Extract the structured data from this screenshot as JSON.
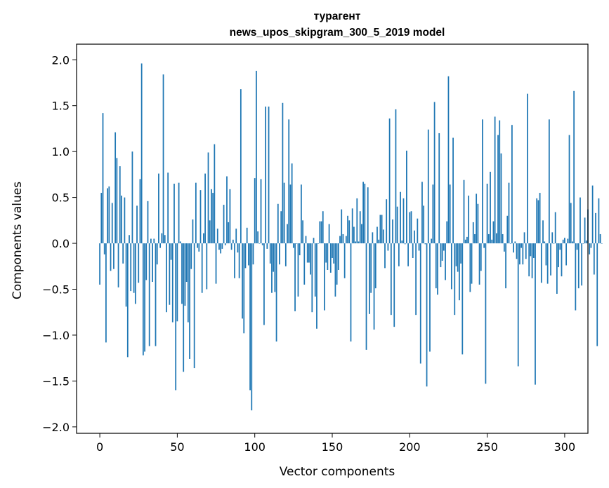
{
  "chart_data": {
    "type": "bar",
    "title": "туpагент",
    "subtitle": "news_upos_skipgram_300_5_2019 model",
    "xlabel": "Vector components",
    "ylabel": "Components values",
    "xlim": [
      -15,
      315
    ],
    "ylim": [
      -2.07,
      2.17
    ],
    "xticks": [
      0,
      50,
      100,
      150,
      200,
      250,
      300
    ],
    "yticks": [
      -2.0,
      -1.5,
      -1.0,
      -0.5,
      0.0,
      0.5,
      1.0,
      1.5,
      2.0
    ],
    "xtick_labels": [
      "0",
      "50",
      "100",
      "150",
      "200",
      "250",
      "300"
    ],
    "ytick_labels": [
      "−2.0",
      "−1.5",
      "−1.0",
      "−0.5",
      "0.0",
      "0.5",
      "1.0",
      "1.5",
      "2.0"
    ],
    "grid": false,
    "bar_color": "#1f77b4",
    "values": [
      -0.45,
      0.55,
      1.42,
      -0.12,
      -1.08,
      0.6,
      0.62,
      -0.3,
      0.44,
      -0.28,
      1.21,
      0.93,
      -0.48,
      0.84,
      0.52,
      -0.22,
      0.5,
      -0.69,
      -1.24,
      0.09,
      -0.52,
      1.0,
      -0.54,
      -0.66,
      0.41,
      -0.43,
      0.7,
      1.96,
      -1.22,
      -1.18,
      -0.4,
      0.46,
      -1.12,
      0.05,
      -0.42,
      0.05,
      -1.12,
      -0.23,
      0.76,
      -0.05,
      0.11,
      1.84,
      0.09,
      -0.75,
      0.77,
      -0.67,
      -0.18,
      -0.86,
      0.65,
      -1.6,
      -0.85,
      0.66,
      0.02,
      -0.66,
      -1.4,
      -0.68,
      -0.42,
      -0.86,
      -1.26,
      -0.28,
      0.26,
      -1.36,
      0.66,
      -0.05,
      -0.09,
      0.58,
      -0.54,
      0.11,
      0.76,
      -0.5,
      0.99,
      0.25,
      0.59,
      0.55,
      1.08,
      -0.44,
      0.16,
      -0.07,
      -0.11,
      -0.06,
      0.42,
      -0.02,
      0.73,
      0.23,
      0.59,
      -0.07,
      0.04,
      -0.38,
      0.16,
      -0.1,
      -0.38,
      1.68,
      -0.82,
      -0.98,
      -0.27,
      0.17,
      -0.24,
      -1.6,
      -1.82,
      -0.23,
      0.71,
      1.88,
      0.13,
      0.0,
      0.7,
      -0.02,
      -0.89,
      1.49,
      -0.06,
      1.49,
      -0.22,
      -0.54,
      -0.31,
      -0.53,
      -1.07,
      0.43,
      -0.23,
      0.35,
      1.53,
      0.66,
      -0.25,
      0.21,
      1.35,
      0.64,
      0.87,
      -0.05,
      -0.74,
      0.0,
      -0.58,
      -0.13,
      0.64,
      0.25,
      -0.45,
      0.08,
      -0.21,
      -0.21,
      -0.34,
      -0.75,
      0.06,
      -0.58,
      -0.93,
      0.0,
      0.24,
      0.24,
      0.35,
      -0.73,
      -0.21,
      -0.29,
      0.21,
      -0.32,
      -0.16,
      -0.22,
      -0.58,
      -0.45,
      -0.29,
      0.08,
      0.37,
      0.1,
      -0.38,
      0.08,
      0.3,
      0.25,
      -1.07,
      0.38,
      0.18,
      0.02,
      0.49,
      0.02,
      0.35,
      0.21,
      0.67,
      0.65,
      -1.16,
      0.61,
      -0.77,
      -0.54,
      0.12,
      -0.94,
      -0.49,
      0.18,
      0.04,
      0.31,
      0.31,
      0.15,
      -0.27,
      0.48,
      -0.08,
      1.36,
      -0.78,
      0.26,
      -0.91,
      1.46,
      0.4,
      -0.25,
      0.56,
      0.03,
      0.49,
      -0.01,
      1.01,
      -0.25,
      0.34,
      0.35,
      -0.16,
      0.14,
      -0.78,
      0.27,
      -0.08,
      -1.31,
      0.67,
      0.41,
      -0.01,
      -1.56,
      1.24,
      -1.18,
      0.05,
      0.64,
      1.54,
      -0.49,
      -0.56,
      1.2,
      -0.26,
      -0.19,
      -0.08,
      -0.4,
      0.24,
      1.82,
      0.64,
      -0.5,
      1.15,
      -0.78,
      -0.25,
      -0.31,
      -0.62,
      -0.22,
      -1.21,
      0.69,
      0.04,
      0.07,
      0.52,
      -0.53,
      -0.44,
      0.23,
      0.1,
      0.54,
      0.43,
      -0.45,
      -0.3,
      1.35,
      -0.05,
      -1.53,
      0.65,
      0.1,
      0.78,
      0.04,
      0.24,
      1.38,
      0.11,
      1.18,
      1.34,
      0.98,
      0.1,
      -0.09,
      -0.49,
      0.3,
      0.66,
      0.0,
      1.29,
      -0.1,
      0.02,
      -0.17,
      -1.34,
      -0.23,
      -0.05,
      -0.23,
      0.12,
      -0.17,
      1.63,
      -0.36,
      -0.14,
      -0.38,
      -0.16,
      -1.54,
      0.49,
      0.47,
      0.55,
      -0.43,
      0.25,
      0.02,
      -0.24,
      -0.44,
      1.35,
      -0.35,
      0.12,
      0.0,
      0.34,
      -0.55,
      -0.26,
      -0.07,
      -0.36,
      0.04,
      0.06,
      -0.24,
      0.05,
      1.18,
      0.44,
      0.02,
      1.66,
      -0.73,
      -0.07,
      -0.49,
      0.5,
      -0.46,
      0.0,
      0.28,
      0.03,
      0.37,
      -0.12,
      -0.05,
      0.63,
      -0.34,
      0.33,
      -1.12,
      0.49,
      0.1,
      0.0
    ]
  }
}
